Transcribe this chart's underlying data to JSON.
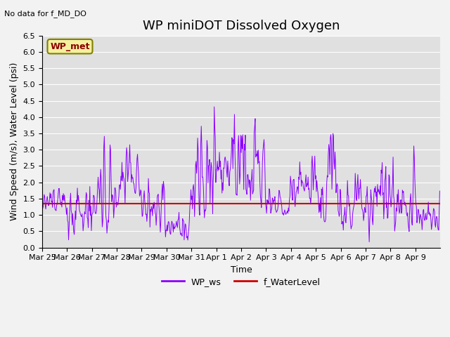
{
  "title": "WP miniDOT Dissolved Oxygen",
  "xlabel": "Time",
  "ylabel": "Wind Speed (m/s), Water Level (psi)",
  "no_data_text": "No data for f_MD_DO",
  "wp_met_label": "WP_met",
  "ylim": [
    0.0,
    6.5
  ],
  "yticks": [
    0.0,
    0.5,
    1.0,
    1.5,
    2.0,
    2.5,
    3.0,
    3.5,
    4.0,
    4.5,
    5.0,
    5.5,
    6.0,
    6.5
  ],
  "water_level": 1.35,
  "line_color_ws": "#8B00FF",
  "line_color_wl": "#CC0000",
  "fig_bg_color": "#F2F2F2",
  "plot_bg_color": "#E0E0E0",
  "legend_ws": "WP_ws",
  "legend_wl": "f_WaterLevel",
  "xtick_labels": [
    "Mar 25",
    "Mar 26",
    "Mar 27",
    "Mar 28",
    "Mar 29",
    "Mar 30",
    "Mar 31",
    "Apr 1",
    "Apr 2",
    "Apr 3",
    "Apr 4",
    "Apr 5",
    "Apr 6",
    "Apr 7",
    "Apr 8",
    "Apr 9"
  ],
  "title_fontsize": 13,
  "axis_label_fontsize": 9,
  "tick_fontsize": 8,
  "legend_fontsize": 9
}
